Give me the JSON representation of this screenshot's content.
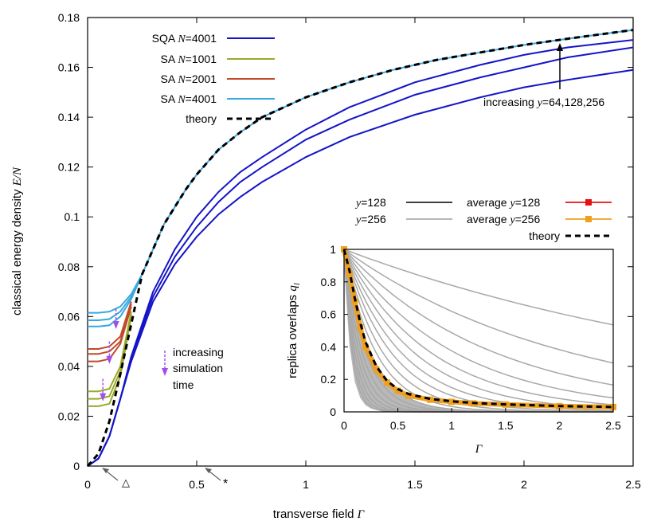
{
  "chart_data": [
    {
      "type": "line",
      "xlabel_text": "transverse field ",
      "xlabel_sym": "Γ",
      "ylabel_text": "classical energy density ",
      "ylabel_sym": "E",
      "ylabel_sep": "/",
      "ylabel_sym2": "N",
      "xlim": [
        0,
        2.5
      ],
      "ylim": [
        0,
        0.18
      ],
      "xticks": [
        "0",
        "0.5",
        "1",
        "1.5",
        "2",
        "2.5"
      ],
      "yticks": [
        "0",
        "0.02",
        "0.04",
        "0.06",
        "0.08",
        "0.1",
        "0.12",
        "0.14",
        "0.16",
        "0.18"
      ],
      "colors": {
        "sqa": "#1414c8",
        "sa1001": "#9aaa28",
        "sa2001": "#c04a2a",
        "sa4001": "#38a8e0",
        "theory": "#000000",
        "arrow": "#a050e8",
        "mark": "#606060"
      },
      "legend": [
        {
          "kind": "SQA",
          "sym": "N",
          "val": "=4001",
          "color": "#1414c8",
          "style": "solid"
        },
        {
          "kind": "SA",
          "sym": "N",
          "val": "=1001",
          "color": "#9aaa28",
          "style": "solid"
        },
        {
          "kind": "SA",
          "sym": "N",
          "val": "=2001",
          "color": "#c04a2a",
          "style": "solid"
        },
        {
          "kind": "SA",
          "sym": "N",
          "val": "=4001",
          "color": "#38a8e0",
          "style": "solid"
        },
        {
          "kind": "theory",
          "sym": "",
          "val": "",
          "color": "#000000",
          "style": "dashed"
        }
      ],
      "series": [
        {
          "name": "SQA y=64",
          "group": "sqa",
          "color": "#1414c8",
          "x": [
            0,
            0.05,
            0.1,
            0.15,
            0.2,
            0.3,
            0.4,
            0.5,
            0.6,
            0.7,
            0.8,
            1.0,
            1.2,
            1.5,
            1.8,
            2.0,
            2.2,
            2.5
          ],
          "y": [
            0,
            0.003,
            0.012,
            0.027,
            0.042,
            0.066,
            0.081,
            0.092,
            0.101,
            0.108,
            0.114,
            0.124,
            0.132,
            0.141,
            0.148,
            0.152,
            0.155,
            0.159
          ]
        },
        {
          "name": "SQA y=128",
          "group": "sqa",
          "color": "#1414c8",
          "x": [
            0,
            0.05,
            0.1,
            0.15,
            0.2,
            0.3,
            0.4,
            0.5,
            0.6,
            0.7,
            0.8,
            1.0,
            1.2,
            1.5,
            1.8,
            2.0,
            2.2,
            2.5
          ],
          "y": [
            0,
            0.003,
            0.012,
            0.027,
            0.043,
            0.068,
            0.084,
            0.096,
            0.106,
            0.114,
            0.12,
            0.131,
            0.139,
            0.149,
            0.156,
            0.16,
            0.164,
            0.168
          ]
        },
        {
          "name": "SQA y=256",
          "group": "sqa",
          "color": "#1414c8",
          "x": [
            0,
            0.05,
            0.1,
            0.15,
            0.2,
            0.3,
            0.4,
            0.5,
            0.6,
            0.7,
            0.8,
            1.0,
            1.2,
            1.5,
            1.8,
            2.0,
            2.2,
            2.5
          ],
          "y": [
            0,
            0.003,
            0.012,
            0.027,
            0.044,
            0.07,
            0.087,
            0.1,
            0.11,
            0.118,
            0.124,
            0.135,
            0.144,
            0.154,
            0.161,
            0.165,
            0.168,
            0.171
          ]
        },
        {
          "name": "SA N=1001 a",
          "group": "sa1001",
          "color": "#9aaa28",
          "x": [
            0,
            0.05,
            0.1,
            0.15,
            0.2
          ],
          "y": [
            0.03,
            0.03,
            0.031,
            0.04,
            0.062
          ]
        },
        {
          "name": "SA N=1001 b",
          "group": "sa1001",
          "color": "#9aaa28",
          "x": [
            0,
            0.05,
            0.1,
            0.15,
            0.2
          ],
          "y": [
            0.027,
            0.027,
            0.028,
            0.038,
            0.061
          ]
        },
        {
          "name": "SA N=1001 c",
          "group": "sa1001",
          "color": "#9aaa28",
          "x": [
            0,
            0.05,
            0.1,
            0.15,
            0.2
          ],
          "y": [
            0.024,
            0.024,
            0.025,
            0.036,
            0.06
          ]
        },
        {
          "name": "SA N=2001 a",
          "group": "sa2001",
          "color": "#c04a2a",
          "x": [
            0,
            0.05,
            0.1,
            0.15,
            0.2
          ],
          "y": [
            0.047,
            0.047,
            0.048,
            0.052,
            0.066
          ]
        },
        {
          "name": "SA N=2001 b",
          "group": "sa2001",
          "color": "#c04a2a",
          "x": [
            0,
            0.05,
            0.1,
            0.15,
            0.2
          ],
          "y": [
            0.045,
            0.045,
            0.046,
            0.05,
            0.065
          ]
        },
        {
          "name": "SA N=2001 c",
          "group": "sa2001",
          "color": "#c04a2a",
          "x": [
            0,
            0.05,
            0.1,
            0.15,
            0.2
          ],
          "y": [
            0.042,
            0.042,
            0.043,
            0.049,
            0.064
          ]
        },
        {
          "name": "SA N=4001 a",
          "group": "sa4001",
          "color": "#38a8e0",
          "x": [
            0,
            0.05,
            0.1,
            0.15,
            0.2,
            0.25
          ],
          "y": [
            0.0615,
            0.0615,
            0.062,
            0.064,
            0.069,
            0.077
          ]
        },
        {
          "name": "SA N=4001 b",
          "group": "sa4001",
          "color": "#38a8e0",
          "x": [
            0,
            0.05,
            0.1,
            0.15,
            0.2,
            0.25
          ],
          "y": [
            0.0585,
            0.0585,
            0.059,
            0.062,
            0.068,
            0.077
          ]
        },
        {
          "name": "SA N=4001 c",
          "group": "sa4001",
          "color": "#38a8e0",
          "x": [
            0,
            0.05,
            0.1,
            0.15,
            0.2,
            0.25
          ],
          "y": [
            0.056,
            0.056,
            0.0565,
            0.06,
            0.067,
            0.077
          ]
        },
        {
          "name": "SA N=4001 long",
          "group": "sa4001",
          "color": "#38a8e0",
          "x": [
            0.25,
            0.3,
            0.35,
            0.4,
            0.45,
            0.5,
            0.6,
            0.7,
            0.8,
            0.9,
            1.0,
            1.2,
            1.4,
            1.6,
            1.8,
            2.0,
            2.2,
            2.5
          ],
          "y": [
            0.077,
            0.087,
            0.097,
            0.104,
            0.111,
            0.117,
            0.127,
            0.134,
            0.14,
            0.144,
            0.148,
            0.154,
            0.159,
            0.163,
            0.166,
            0.169,
            0.1715,
            0.175
          ]
        },
        {
          "name": "theory",
          "group": "theory",
          "color": "#000000",
          "dash": true,
          "x": [
            0,
            0.05,
            0.1,
            0.15,
            0.2,
            0.25,
            0.3,
            0.35,
            0.4,
            0.45,
            0.5,
            0.6,
            0.7,
            0.8,
            0.9,
            1.0,
            1.2,
            1.4,
            1.6,
            1.8,
            2.0,
            2.2,
            2.5
          ],
          "y": [
            0.0,
            0.005,
            0.018,
            0.037,
            0.057,
            0.077,
            0.087,
            0.097,
            0.104,
            0.111,
            0.117,
            0.127,
            0.134,
            0.14,
            0.144,
            0.148,
            0.154,
            0.159,
            0.163,
            0.166,
            0.169,
            0.1715,
            0.175
          ]
        }
      ],
      "annotations": {
        "increasing_prefix": "increasing ",
        "increasing_sym": "y",
        "increasing_vals": "=64,128,256",
        "sim_time": [
          "increasing",
          "simulation",
          "time"
        ],
        "mark_triangle": "△",
        "mark_star": "*"
      }
    },
    {
      "type": "line",
      "inset": true,
      "xlabel_sym": "Γ",
      "ylabel_text": "replica overlaps ",
      "ylabel_sym": "q",
      "ylabel_sub": "l",
      "xlim": [
        0,
        2.5
      ],
      "ylim": [
        0,
        1
      ],
      "xticks": [
        "0",
        "0.5",
        "1",
        "1.5",
        "2",
        "2.5"
      ],
      "yticks": [
        "0",
        "0.2",
        "0.4",
        "0.6",
        "0.8",
        "1"
      ],
      "legend": [
        {
          "sym": "y",
          "val": "=128",
          "label": "",
          "color": "#000000",
          "style": "solid"
        },
        {
          "sym": "y",
          "val": "=256",
          "label": "",
          "color": "#a0a0a0",
          "style": "solid"
        },
        {
          "sym": "y",
          "val": "=128",
          "label": "average ",
          "color": "#e81010",
          "style": "marker"
        },
        {
          "sym": "y",
          "val": "=256",
          "label": "average ",
          "color": "#f0a020",
          "style": "marker"
        },
        {
          "sym": "",
          "val": "",
          "label": "theory",
          "color": "#000000",
          "style": "dashed"
        }
      ],
      "overlap_decay_rates": [
        0.25,
        0.48,
        0.72,
        0.98,
        1.25,
        1.55,
        1.9,
        2.3,
        2.8,
        3.4,
        4.1,
        5.0,
        6.0,
        7.2,
        8.6,
        10.2,
        12.0,
        14.0
      ],
      "average": {
        "x": [
          0,
          0.05,
          0.1,
          0.15,
          0.2,
          0.3,
          0.4,
          0.5,
          0.6,
          0.8,
          1.0,
          1.2,
          1.5,
          2.0,
          2.5
        ],
        "y": [
          1.0,
          0.85,
          0.68,
          0.52,
          0.4,
          0.26,
          0.18,
          0.13,
          0.1,
          0.075,
          0.062,
          0.052,
          0.045,
          0.035,
          0.03
        ]
      },
      "theory": {
        "x": [
          0,
          0.05,
          0.1,
          0.15,
          0.2,
          0.3,
          0.4,
          0.5,
          0.6,
          0.8,
          1.0,
          1.2,
          1.5,
          2.0,
          2.5
        ],
        "y": [
          1.0,
          0.87,
          0.7,
          0.55,
          0.43,
          0.28,
          0.19,
          0.14,
          0.11,
          0.08,
          0.065,
          0.055,
          0.046,
          0.036,
          0.03
        ]
      },
      "colors": {
        "avg256": "#f0a020",
        "avg128": "#e81010",
        "gray": "#a8a8a8"
      }
    }
  ]
}
